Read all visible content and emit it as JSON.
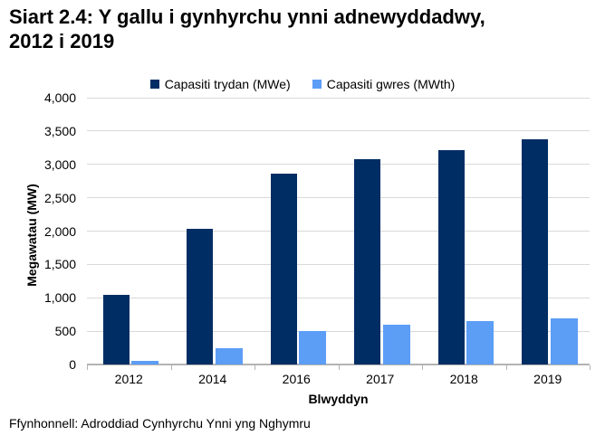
{
  "page": {
    "title_line1": "Siart 2.4: Y gallu i gynhyrchu ynni adnewyddadwy,",
    "title_line2": "2012 i 2019",
    "source": "Ffynhonnell: Adroddiad Cynhyrchu Ynni yng Nghymru"
  },
  "chart_data": {
    "type": "bar",
    "title": "Siart 2.4: Y gallu i gynhyrchu ynni adnewyddadwy, 2012 i 2019",
    "categories": [
      "2012",
      "2014",
      "2016",
      "2017",
      "2018",
      "2019"
    ],
    "series": [
      {
        "name": "Capasiti trydan (MWe)",
        "color": "#002d64",
        "values": [
          1040,
          2030,
          2860,
          3080,
          3210,
          3380
        ]
      },
      {
        "name": "Capasiti gwres (MWth)",
        "color": "#5c9df6",
        "values": [
          55,
          250,
          500,
          600,
          650,
          685
        ]
      }
    ],
    "xlabel": "Blwyddyn",
    "ylabel": "Megawatau (MW)",
    "ylim": [
      0,
      4000
    ],
    "ytick_step": 500,
    "ytick_labels": [
      "0",
      "500",
      "1,000",
      "1,500",
      "2,000",
      "2,500",
      "3,000",
      "3,500",
      "4,000"
    ],
    "grid": true,
    "legend_position": "top",
    "source": "Ffynhonnell: Adroddiad Cynhyrchu Ynni yng Nghymru"
  },
  "colors": {
    "grid": "#d9d9d9",
    "axis": "#b3b3b3",
    "text": "#000000",
    "background": "#ffffff"
  }
}
